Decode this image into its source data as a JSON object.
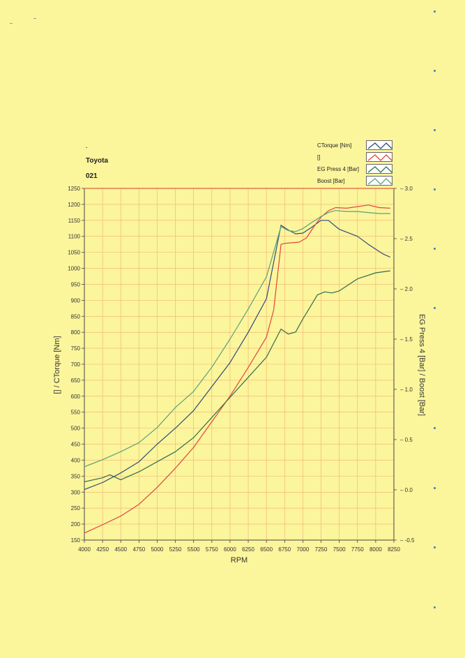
{
  "header": {
    "dot": ".",
    "make": "Toyota",
    "code": "021"
  },
  "legend": [
    {
      "label": "CTorque [Nm]",
      "color": "#2e4a7a"
    },
    {
      "label": "[]",
      "color": "#e0463c"
    },
    {
      "label": "EG Press 4 [Bar]",
      "color": "#2f6e4d"
    },
    {
      "label": "Boost [Bar]",
      "color": "#5aa278"
    }
  ],
  "chart_data": {
    "type": "line",
    "xlabel": "RPM",
    "ylabel_left": "[] / CTorque [Nm]",
    "ylabel_right": "EG Press 4 [Bar] / Boost [Bar]",
    "xlim": [
      4000,
      8250
    ],
    "ylim_left": [
      150,
      1250
    ],
    "ylim_right": [
      -0.5,
      3.0
    ],
    "x_ticks": [
      4000,
      4250,
      4500,
      4750,
      5000,
      5250,
      5500,
      5750,
      6000,
      6250,
      6500,
      6750,
      7000,
      7250,
      7500,
      7750,
      8000,
      8250
    ],
    "y_ticks_left": [
      150,
      200,
      250,
      300,
      350,
      400,
      450,
      500,
      550,
      600,
      650,
      700,
      750,
      800,
      850,
      900,
      950,
      1000,
      1050,
      1100,
      1150,
      1200,
      1250
    ],
    "y_ticks_right": [
      "-0.5",
      "0.0",
      "0.5",
      "1.0",
      "1.5",
      "2.0",
      "2.5",
      "3.0"
    ],
    "grid": true,
    "series": [
      {
        "name": "CTorque [Nm]",
        "axis": "left",
        "color": "#2e4a7a",
        "x": [
          4000,
          4250,
          4500,
          4750,
          5000,
          5250,
          5500,
          5750,
          6000,
          6250,
          6500,
          6700,
          6800,
          6900,
          7000,
          7100,
          7250,
          7350,
          7500,
          7750,
          7900,
          8100,
          8200
        ],
        "y": [
          308,
          330,
          360,
          395,
          450,
          500,
          555,
          630,
          705,
          800,
          905,
          1135,
          1120,
          1108,
          1110,
          1125,
          1150,
          1150,
          1122,
          1100,
          1075,
          1045,
          1035
        ]
      },
      {
        "name": "[]",
        "axis": "left",
        "color": "#e0463c",
        "x": [
          4000,
          4250,
          4500,
          4750,
          5000,
          5250,
          5500,
          5750,
          6000,
          6250,
          6500,
          6600,
          6700,
          6750,
          6850,
          6950,
          7050,
          7150,
          7250,
          7350,
          7450,
          7600,
          7750,
          7900,
          8050,
          8200
        ],
        "y": [
          172,
          198,
          225,
          262,
          315,
          375,
          440,
          520,
          600,
          690,
          785,
          870,
          1075,
          1078,
          1080,
          1082,
          1095,
          1130,
          1160,
          1180,
          1190,
          1188,
          1193,
          1198,
          1190,
          1188
        ]
      },
      {
        "name": "EG Press 4 [Bar]",
        "axis": "right",
        "color": "#2f6e4d",
        "x": [
          4000,
          4250,
          4350,
          4500,
          4750,
          5000,
          5250,
          5500,
          5750,
          6000,
          6250,
          6500,
          6700,
          6800,
          6900,
          7000,
          7100,
          7200,
          7300,
          7400,
          7500,
          7750,
          8000,
          8200
        ],
        "y": [
          0.08,
          0.12,
          0.15,
          0.1,
          0.18,
          0.28,
          0.38,
          0.52,
          0.72,
          0.92,
          1.12,
          1.32,
          1.6,
          1.55,
          1.57,
          1.7,
          1.82,
          1.94,
          1.97,
          1.96,
          1.98,
          2.1,
          2.16,
          2.18
        ]
      },
      {
        "name": "Boost [Bar]",
        "axis": "right",
        "color": "#5aa278",
        "x": [
          4000,
          4250,
          4500,
          4750,
          5000,
          5250,
          5500,
          5750,
          6000,
          6250,
          6500,
          6700,
          6800,
          6900,
          7000,
          7100,
          7250,
          7350,
          7450,
          7600,
          7750,
          7900,
          8050,
          8200
        ],
        "y": [
          0.23,
          0.3,
          0.38,
          0.47,
          0.62,
          0.82,
          0.98,
          1.22,
          1.5,
          1.8,
          2.12,
          2.62,
          2.58,
          2.57,
          2.6,
          2.65,
          2.72,
          2.76,
          2.78,
          2.77,
          2.77,
          2.76,
          2.75,
          2.75
        ]
      }
    ]
  },
  "colors": {
    "background": "#fbf59c",
    "grid": "#f0b070",
    "top_border": "#e06040",
    "axis": "#444444"
  }
}
